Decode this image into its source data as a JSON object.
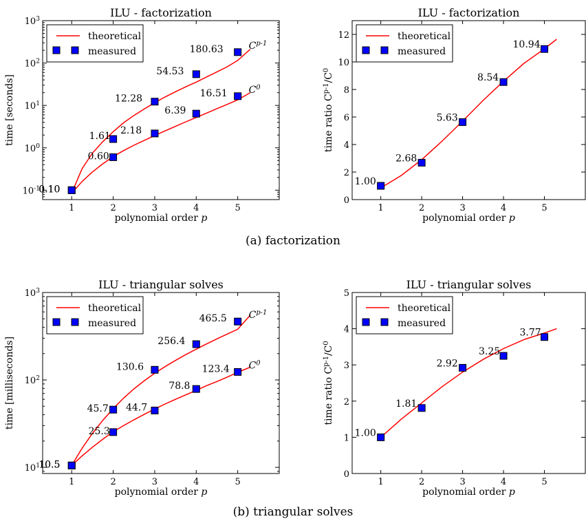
{
  "captions": [
    "(a) factorization",
    "(b) triangular solves"
  ],
  "chart_data": [
    {
      "id": "a-time",
      "type": "line",
      "title": "ILU - factorization",
      "xlabel": "polynomial order p",
      "ylabel": "time [seconds]",
      "yscale": "log",
      "xlim": [
        0.3,
        6.0
      ],
      "ylim": [
        0.06,
        1000
      ],
      "xticks": [
        "1",
        "2",
        "3",
        "4",
        "5"
      ],
      "yticks": [
        "10^-1",
        "10^0",
        "10^1",
        "10^2",
        "10^3"
      ],
      "legend": {
        "position": "top-left",
        "entries": [
          "theoretical",
          "measured"
        ]
      },
      "series": [
        {
          "name": "measured",
          "x": [
            1,
            2,
            3,
            4,
            5
          ],
          "values": [
            0.1,
            1.61,
            12.28,
            54.53,
            180.63
          ],
          "labels": [
            "0.10",
            "1.61",
            "12.28",
            "54.53",
            "180.63"
          ],
          "tag": "C^{p-1}",
          "curve_x": [
            1.0,
            1.25,
            1.5,
            1.75,
            2.0,
            2.25,
            2.5,
            2.75,
            3.0,
            3.25,
            3.5,
            3.75,
            4.0,
            4.25,
            4.5,
            4.75,
            5.0,
            5.3
          ],
          "curve_y": [
            0.085,
            0.32,
            0.75,
            1.4,
            2.4,
            3.9,
            5.8,
            8.3,
            11.6,
            15.8,
            21.0,
            27.5,
            35.5,
            47.0,
            62.0,
            82.0,
            115.0,
            210.0
          ]
        },
        {
          "name": "measured",
          "x": [
            1,
            2,
            3,
            4,
            5
          ],
          "values": [
            0.1,
            0.6,
            2.18,
            6.39,
            16.51
          ],
          "labels": [
            "0.10",
            "0.60",
            "2.18",
            "6.39",
            "16.51"
          ],
          "tag": "C^0",
          "curve_x": [
            1.0,
            1.25,
            1.5,
            1.75,
            2.0,
            2.25,
            2.5,
            2.75,
            3.0,
            3.25,
            3.5,
            3.75,
            4.0,
            4.25,
            4.5,
            4.75,
            5.0,
            5.3
          ],
          "curve_y": [
            0.085,
            0.16,
            0.27,
            0.42,
            0.62,
            0.86,
            1.15,
            1.5,
            1.95,
            2.5,
            3.2,
            4.1,
            5.2,
            6.6,
            8.4,
            10.6,
            13.5,
            20.0
          ]
        }
      ]
    },
    {
      "id": "a-ratio",
      "type": "line",
      "title": "ILU - factorization",
      "xlabel": "polynomial order p",
      "ylabel": "time ratio C^{p-1}/C^0",
      "yscale": "linear",
      "xlim": [
        0.3,
        6.0
      ],
      "ylim": [
        0,
        13
      ],
      "xticks": [
        "1",
        "2",
        "3",
        "4",
        "5"
      ],
      "yticks": [
        "0",
        "2",
        "4",
        "6",
        "8",
        "10",
        "12"
      ],
      "legend": {
        "position": "top-left",
        "entries": [
          "theoretical",
          "measured"
        ]
      },
      "series": [
        {
          "name": "measured",
          "x": [
            1,
            2,
            3,
            4,
            5
          ],
          "values": [
            1.0,
            2.68,
            5.63,
            8.54,
            10.94
          ],
          "labels": [
            "1.00",
            "2.68",
            "5.63",
            "8.54",
            "10.94"
          ],
          "curve_x": [
            1.0,
            1.5,
            2.0,
            2.5,
            3.0,
            3.5,
            4.0,
            4.5,
            5.0,
            5.3
          ],
          "curve_y": [
            0.85,
            1.75,
            2.9,
            4.25,
            5.7,
            7.2,
            8.6,
            9.9,
            10.95,
            11.65
          ]
        }
      ]
    },
    {
      "id": "b-time",
      "type": "line",
      "title": "ILU - triangular solves",
      "xlabel": "polynomial order p",
      "ylabel": "time [milliseconds]",
      "yscale": "log",
      "xlim": [
        0.3,
        6.0
      ],
      "ylim": [
        8.5,
        1000
      ],
      "xticks": [
        "1",
        "2",
        "3",
        "4",
        "5"
      ],
      "yticks": [
        "10^1",
        "10^2",
        "10^3"
      ],
      "legend": {
        "position": "top-left",
        "entries": [
          "theoretical",
          "measured"
        ]
      },
      "series": [
        {
          "name": "measured",
          "x": [
            1,
            2,
            3,
            4,
            5
          ],
          "values": [
            10.5,
            45.7,
            130.6,
            256.4,
            465.5
          ],
          "labels": [
            "10.5",
            "45.7",
            "130.6",
            "256.4",
            "465.5"
          ],
          "tag": "C^{p-1}",
          "curve_x": [
            1.0,
            1.25,
            1.5,
            1.75,
            2.0,
            2.25,
            2.5,
            2.75,
            3.0,
            3.25,
            3.5,
            3.75,
            4.0,
            4.25,
            4.5,
            4.75,
            5.0,
            5.3
          ],
          "curve_y": [
            10.5,
            16.5,
            24.5,
            34.5,
            47.0,
            62.0,
            79.0,
            98.0,
            119.0,
            142.0,
            167.0,
            195.0,
            225.0,
            258.0,
            295.0,
            335.0,
            380.0,
            550.0
          ]
        },
        {
          "name": "measured",
          "x": [
            1,
            2,
            3,
            4,
            5
          ],
          "values": [
            10.5,
            25.3,
            44.7,
            78.8,
            123.4
          ],
          "labels": [
            "10.5",
            "25.3",
            "44.7",
            "78.8",
            "123.4"
          ],
          "tag": "C^0",
          "curve_x": [
            1.0,
            1.25,
            1.5,
            1.75,
            2.0,
            2.25,
            2.5,
            2.75,
            3.0,
            3.25,
            3.5,
            3.75,
            4.0,
            4.25,
            4.5,
            4.75,
            5.0,
            5.3
          ],
          "curve_y": [
            10.5,
            13.5,
            17.0,
            21.0,
            25.5,
            30.0,
            35.0,
            40.5,
            46.5,
            53.0,
            60.0,
            67.5,
            76.0,
            86.0,
            96.0,
            108.0,
            122.0,
            140.0
          ]
        }
      ]
    },
    {
      "id": "b-ratio",
      "type": "line",
      "title": "ILU - triangular solves",
      "xlabel": "polynomial order p",
      "ylabel": "time ratio C^{p-1}/C^0",
      "yscale": "linear",
      "xlim": [
        0.3,
        6.0
      ],
      "ylim": [
        0,
        5
      ],
      "xticks": [
        "1",
        "2",
        "3",
        "4",
        "5"
      ],
      "yticks": [
        "0",
        "1",
        "2",
        "3",
        "4",
        "5"
      ],
      "legend": {
        "position": "top-left",
        "entries": [
          "theoretical",
          "measured"
        ]
      },
      "series": [
        {
          "name": "measured",
          "x": [
            1,
            2,
            3,
            4,
            5
          ],
          "values": [
            1.0,
            1.81,
            2.92,
            3.25,
            3.77
          ],
          "labels": [
            "1.00",
            "1.81",
            "2.92",
            "3.25",
            "3.77"
          ],
          "curve_x": [
            1.0,
            1.5,
            2.0,
            2.5,
            3.0,
            3.5,
            4.0,
            4.5,
            5.0,
            5.3
          ],
          "curve_y": [
            1.0,
            1.5,
            1.95,
            2.4,
            2.8,
            3.15,
            3.45,
            3.7,
            3.88,
            4.0
          ]
        }
      ]
    }
  ]
}
